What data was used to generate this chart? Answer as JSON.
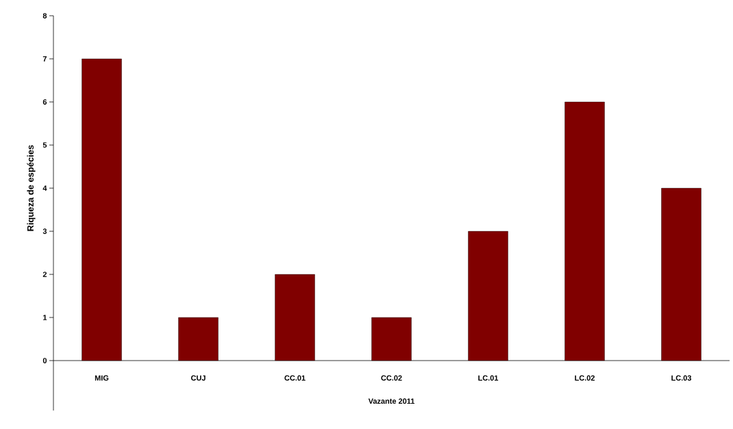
{
  "chart_data": {
    "type": "bar",
    "categories": [
      "MIG",
      "CUJ",
      "CC.01",
      "CC.02",
      "LC.01",
      "LC.02",
      "LC.03"
    ],
    "values": [
      7,
      1,
      2,
      1,
      3,
      6,
      4
    ],
    "color": "#800000",
    "annotations": [
      "Vazante 2011"
    ],
    "ylabel": "Riqueza de espécies",
    "ylim": [
      0,
      8
    ],
    "yticks": [
      0,
      1,
      2,
      3,
      4,
      5,
      6,
      7,
      8
    ],
    "grid": false
  }
}
